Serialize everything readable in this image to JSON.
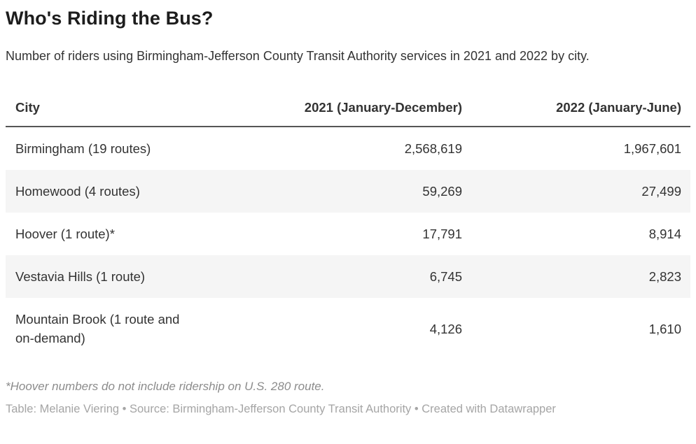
{
  "header": {
    "title": "Who's Riding the Bus?",
    "description": "Number of riders using Birmingham-Jefferson County Transit Authority services in 2021 and 2022 by city."
  },
  "table": {
    "columns": [
      {
        "label": "City"
      },
      {
        "label": "2021 (January-December)"
      },
      {
        "label": "2022 (January-June)"
      }
    ],
    "rows": [
      {
        "city": "Birmingham (19 routes)",
        "y2021": "2,568,619",
        "y2022": "1,967,601"
      },
      {
        "city": "Homewood (4 routes)",
        "y2021": "59,269",
        "y2022": "27,499"
      },
      {
        "city": "Hoover (1 route)*",
        "y2021": "17,791",
        "y2022": "8,914"
      },
      {
        "city": "Vestavia Hills (1 route)",
        "y2021": "6,745",
        "y2022": "2,823"
      },
      {
        "city": "Mountain Brook (1 route and on-demand)",
        "y2021": "4,126",
        "y2022": "1,610"
      }
    ]
  },
  "footnote": "*Hoover numbers do not include ridership on U.S. 280 route.",
  "footer": "Table: Melanie Viering • Source: Birmingham-Jefferson County Transit Authority • Created with Datawrapper",
  "colors": {
    "title-color": "#1d1d1d",
    "text-color": "#333333",
    "border-color": "#555555",
    "stripe-color": "#f5f5f5",
    "footnote-color": "#8c8c8c",
    "footer-color": "#a5a5a5",
    "bg-color": "#ffffff"
  },
  "chart_data": {
    "type": "table",
    "title": "Who's Riding the Bus?",
    "subtitle": "Number of riders using Birmingham-Jefferson County Transit Authority services in 2021 and 2022 by city.",
    "columns": [
      "City",
      "2021 (January-December)",
      "2022 (January-June)"
    ],
    "rows": [
      [
        "Birmingham (19 routes)",
        2568619,
        1967601
      ],
      [
        "Homewood (4 routes)",
        59269,
        27499
      ],
      [
        "Hoover (1 route)*",
        17791,
        8914
      ],
      [
        "Vestavia Hills (1 route)",
        6745,
        2823
      ],
      [
        "Mountain Brook (1 route and on-demand)",
        4126,
        1610
      ]
    ],
    "footnote": "*Hoover numbers do not include ridership on U.S. 280 route.",
    "byline": "Table: Melanie Viering • Source: Birmingham-Jefferson County Transit Authority • Created with Datawrapper"
  }
}
